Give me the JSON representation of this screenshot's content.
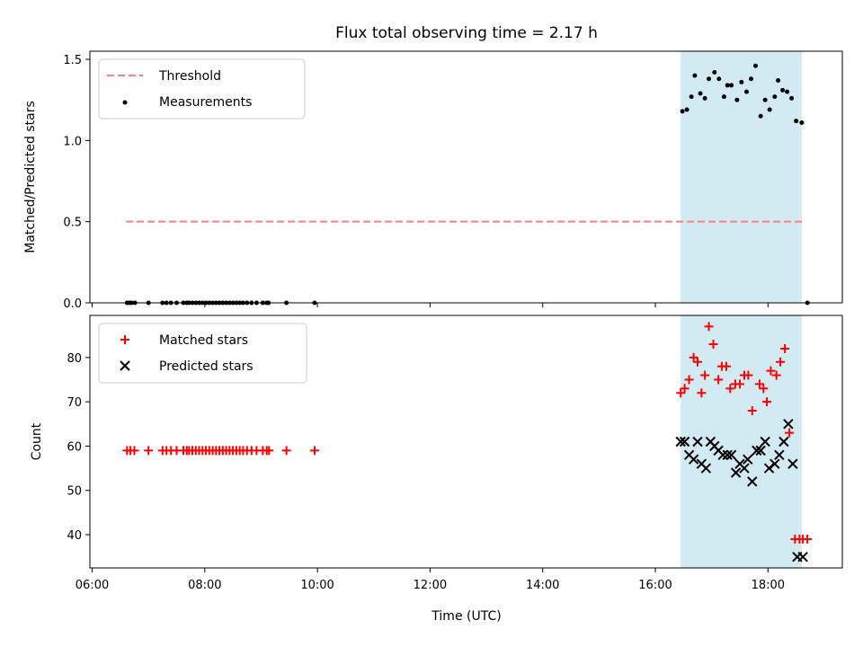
{
  "chart_data": {
    "title": "Flux total observing time = 2.17 h",
    "xlabel": "Time (UTC)",
    "xlim_hours": [
      5.96,
      19.32
    ],
    "x_ticks": [
      {
        "value": 6,
        "label": "06:00"
      },
      {
        "value": 8,
        "label": "08:00"
      },
      {
        "value": 10,
        "label": "10:00"
      },
      {
        "value": 12,
        "label": "12:00"
      },
      {
        "value": 14,
        "label": "14:00"
      },
      {
        "value": 16,
        "label": "16:00"
      },
      {
        "value": 18,
        "label": "18:00"
      }
    ],
    "highlight_span": [
      16.45,
      18.6
    ],
    "highlight_color": "#add8e6",
    "panels": [
      {
        "type": "scatter",
        "ylabel": "Matched/Predicted stars",
        "ylim": [
          0,
          1.55
        ],
        "y_ticks": [
          {
            "value": 0,
            "label": "0.0"
          },
          {
            "value": 0.5,
            "label": "0.5"
          },
          {
            "value": 1.0,
            "label": "1.0"
          },
          {
            "value": 1.5,
            "label": "1.5"
          }
        ],
        "legend_position": "top-left",
        "threshold": {
          "name": "Threshold",
          "value": 0.5,
          "x_range": [
            6.6,
            18.65
          ],
          "color": "#ff7f7f"
        },
        "measurements": {
          "name": "Measurements",
          "color": "#000000",
          "x": [
            6.62,
            6.66,
            6.7,
            6.76,
            7.0,
            7.25,
            7.32,
            7.4,
            7.5,
            7.62,
            7.68,
            7.72,
            7.78,
            7.84,
            7.9,
            7.96,
            8.02,
            8.08,
            8.14,
            8.2,
            8.26,
            8.32,
            8.38,
            8.44,
            8.5,
            8.56,
            8.62,
            8.68,
            8.75,
            8.83,
            8.92,
            9.03,
            9.1,
            9.13,
            9.45,
            9.95,
            16.48,
            16.56,
            16.64,
            16.7,
            16.8,
            16.88,
            16.95,
            17.05,
            17.13,
            17.22,
            17.28,
            17.35,
            17.45,
            17.53,
            17.62,
            17.7,
            17.78,
            17.87,
            17.95,
            18.03,
            18.12,
            18.18,
            18.26,
            18.34,
            18.42,
            18.5,
            18.6,
            18.7
          ],
          "y": [
            0,
            0,
            0,
            0,
            0,
            0,
            0,
            0,
            0,
            0,
            0,
            0,
            0,
            0,
            0,
            0,
            0,
            0,
            0,
            0,
            0,
            0,
            0,
            0,
            0,
            0,
            0,
            0,
            0,
            0,
            0,
            0,
            0,
            0,
            0,
            0,
            1.18,
            1.19,
            1.27,
            1.4,
            1.29,
            1.26,
            1.38,
            1.42,
            1.38,
            1.27,
            1.34,
            1.34,
            1.25,
            1.36,
            1.3,
            1.38,
            1.46,
            1.15,
            1.25,
            1.19,
            1.27,
            1.37,
            1.31,
            1.3,
            1.26,
            1.12,
            1.11,
            0
          ]
        }
      },
      {
        "type": "scatter",
        "ylabel": "Count",
        "ylim": [
          32.5,
          89.5
        ],
        "y_ticks": [
          {
            "value": 40,
            "label": "40"
          },
          {
            "value": 50,
            "label": "50"
          },
          {
            "value": 60,
            "label": "60"
          },
          {
            "value": 70,
            "label": "70"
          },
          {
            "value": 80,
            "label": "80"
          }
        ],
        "legend_position": "top-left",
        "series": [
          {
            "name": "Matched stars",
            "marker": "plus",
            "color": "#ff0000",
            "x": [
              6.62,
              6.68,
              6.75,
              7.0,
              7.25,
              7.32,
              7.4,
              7.5,
              7.62,
              7.68,
              7.72,
              7.78,
              7.84,
              7.9,
              7.96,
              8.02,
              8.08,
              8.14,
              8.2,
              8.26,
              8.32,
              8.38,
              8.44,
              8.5,
              8.56,
              8.62,
              8.68,
              8.75,
              8.83,
              8.92,
              9.03,
              9.1,
              9.14,
              9.45,
              9.95,
              16.45,
              16.52,
              16.6,
              16.68,
              16.75,
              16.82,
              16.88,
              16.95,
              17.03,
              17.12,
              17.18,
              17.26,
              17.33,
              17.42,
              17.5,
              17.58,
              17.65,
              17.72,
              17.85,
              17.92,
              17.98,
              18.05,
              18.15,
              18.22,
              18.3,
              18.38,
              18.48,
              18.56,
              18.62,
              18.7
            ],
            "y": [
              59,
              59,
              59,
              59,
              59,
              59,
              59,
              59,
              59,
              59,
              59,
              59,
              59,
              59,
              59,
              59,
              59,
              59,
              59,
              59,
              59,
              59,
              59,
              59,
              59,
              59,
              59,
              59,
              59,
              59,
              59,
              59,
              59,
              59,
              59,
              72,
              73,
              75,
              80,
              79,
              72,
              76,
              87,
              83,
              75,
              78,
              78,
              73,
              74,
              74,
              76,
              76,
              68,
              74,
              73,
              70,
              77,
              76,
              79,
              82,
              63,
              39,
              39,
              39,
              39
            ]
          },
          {
            "name": "Predicted stars",
            "marker": "x",
            "color": "#000000",
            "x": [
              16.45,
              16.52,
              16.6,
              16.68,
              16.75,
              16.82,
              16.9,
              16.98,
              17.05,
              17.12,
              17.2,
              17.28,
              17.35,
              17.43,
              17.5,
              17.58,
              17.64,
              17.72,
              17.8,
              17.87,
              17.95,
              18.02,
              18.12,
              18.2,
              18.28,
              18.36,
              18.44,
              18.52,
              18.62
            ],
            "y": [
              61,
              61,
              58,
              57,
              61,
              56,
              55,
              61,
              60,
              59,
              58,
              58,
              58,
              54,
              56,
              55,
              57,
              52,
              59,
              59,
              61,
              55,
              56,
              58,
              61,
              65,
              56,
              35,
              35
            ]
          }
        ]
      }
    ]
  }
}
